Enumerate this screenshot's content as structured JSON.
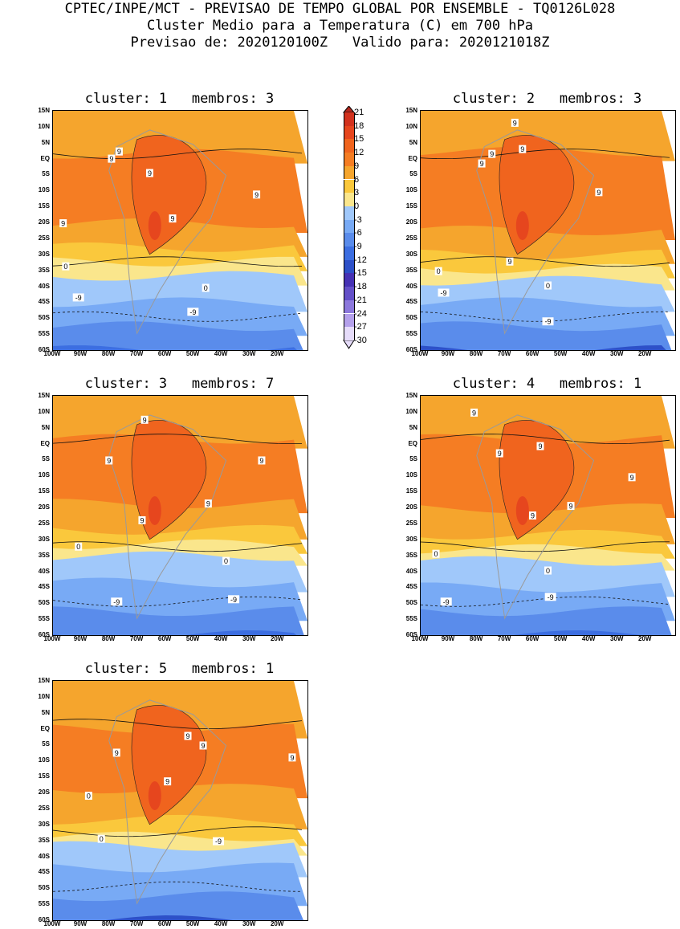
{
  "header": {
    "line1": "CPTEC/INPE/MCT - PREVISAO DE TEMPO GLOBAL POR ENSEMBLE - TQ0126L028",
    "line2": "Cluster Medio para a Temperatura (C) em 700 hPa",
    "line3": "Previsao de: 2020120100Z   Valido para: 2020121018Z"
  },
  "axes": {
    "lat_labels": [
      "15N",
      "10N",
      "5N",
      "EQ",
      "5S",
      "10S",
      "15S",
      "20S",
      "25S",
      "30S",
      "35S",
      "40S",
      "45S",
      "50S",
      "55S",
      "60S"
    ],
    "lon_labels": [
      "100W",
      "90W",
      "80W",
      "70W",
      "60W",
      "50W",
      "40W",
      "30W",
      "20W"
    ]
  },
  "colorbar": {
    "labels": [
      "21",
      "18",
      "15",
      "12",
      "9",
      "6",
      "3",
      "0",
      "-3",
      "-6",
      "-9",
      "-12",
      "-15",
      "-18",
      "-21",
      "-24",
      "-27",
      "-30"
    ],
    "colors": [
      "#b4281e",
      "#d2321e",
      "#e6461e",
      "#f0641e",
      "#f57d23",
      "#f5a52d",
      "#fac83c",
      "#fae68c",
      "#a0c8fa",
      "#78aaf5",
      "#5a8ceb",
      "#3c6ee1",
      "#2d50c8",
      "#4632b4",
      "#6450c8",
      "#8c78dc",
      "#b4a0eb",
      "#e6dcfa"
    ]
  },
  "panels": [
    {
      "title": "cluster: 1   membros: 3",
      "contour_labels": [
        "9",
        "9",
        "9",
        "9",
        "9",
        "9",
        "0",
        "0",
        "-9",
        "-9"
      ]
    },
    {
      "title": "cluster: 2   membros: 3",
      "contour_labels": [
        "9",
        "9",
        "9",
        "9",
        "9",
        "9",
        "0",
        "0",
        "-9",
        "-9"
      ]
    },
    {
      "title": "cluster: 3   membros: 7",
      "contour_labels": [
        "9",
        "9",
        "9",
        "9",
        "9",
        "0",
        "0",
        "-9",
        "-9"
      ]
    },
    {
      "title": "cluster: 4   membros: 1",
      "contour_labels": [
        "9",
        "9",
        "9",
        "9",
        "9",
        "9",
        "0",
        "0",
        "-9",
        "-9"
      ]
    },
    {
      "title": "cluster: 5   membros: 1",
      "contour_labels": [
        "9",
        "9",
        "9",
        "9",
        "9",
        "0",
        "0",
        "-9"
      ]
    }
  ]
}
